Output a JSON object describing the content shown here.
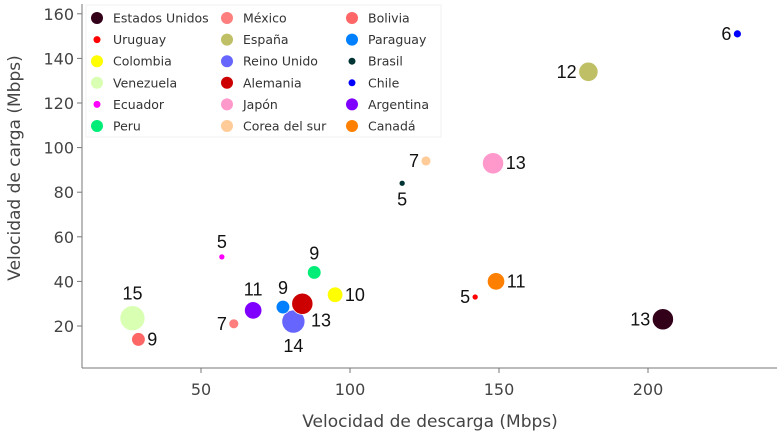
{
  "chart_data": {
    "type": "scatter",
    "subtype": "bubble",
    "title": "",
    "xlabel": "Velocidad de descarga (Mbps)",
    "ylabel": "Velocidad de carga (Mbps)",
    "xlim": [
      10,
      243
    ],
    "ylim": [
      -1,
      165
    ],
    "xticks": [
      50,
      100,
      150,
      200
    ],
    "yticks": [
      20,
      40,
      60,
      80,
      100,
      120,
      140,
      160
    ],
    "grid": false,
    "legend_position": "top-left",
    "series": [
      {
        "name": "Estados Unidos",
        "color": "#33001a",
        "x": 205,
        "y": 23,
        "size": 13
      },
      {
        "name": "Uruguay",
        "color": "#ff0000",
        "x": 142,
        "y": 33,
        "size": 5
      },
      {
        "name": "Colombia",
        "color": "#ffff00",
        "x": 95,
        "y": 34,
        "size": 10
      },
      {
        "name": "Venezuela",
        "color": "#d9ffb3",
        "x": 27,
        "y": 23.5,
        "size": 15
      },
      {
        "name": "Ecuador",
        "color": "#ff00ff",
        "x": 57,
        "y": 51,
        "size": 5
      },
      {
        "name": "Peru",
        "color": "#00ee77",
        "x": 88,
        "y": 44,
        "size": 9
      },
      {
        "name": "México",
        "color": "#ff7f7f",
        "x": 61,
        "y": 21,
        "size": 7
      },
      {
        "name": "España",
        "color": "#bfbf66",
        "x": 180,
        "y": 134,
        "size": 12
      },
      {
        "name": "Reino Unido",
        "color": "#6666ff",
        "x": 81,
        "y": 22,
        "size": 14
      },
      {
        "name": "Alemania",
        "color": "#cc0000",
        "x": 84,
        "y": 30,
        "size": 13
      },
      {
        "name": "Japón",
        "color": "#ff99cc",
        "x": 148,
        "y": 93,
        "size": 13
      },
      {
        "name": "Corea del sur",
        "color": "#ffcc99",
        "x": 125.5,
        "y": 94,
        "size": 7
      },
      {
        "name": "Bolivia",
        "color": "#ff6666",
        "x": 29,
        "y": 14,
        "size": 9
      },
      {
        "name": "Paraguay",
        "color": "#0080ff",
        "x": 77.5,
        "y": 28.5,
        "size": 9
      },
      {
        "name": "Brasil",
        "color": "#003333",
        "x": 117.5,
        "y": 84,
        "size": 5
      },
      {
        "name": "Chile",
        "color": "#0000ff",
        "x": 230,
        "y": 151,
        "size": 6
      },
      {
        "name": "Argentina",
        "color": "#8000ff",
        "x": 67.5,
        "y": 27,
        "size": 11
      },
      {
        "name": "Canadá",
        "color": "#ff8000",
        "x": 149,
        "y": 40,
        "size": 11
      }
    ]
  }
}
